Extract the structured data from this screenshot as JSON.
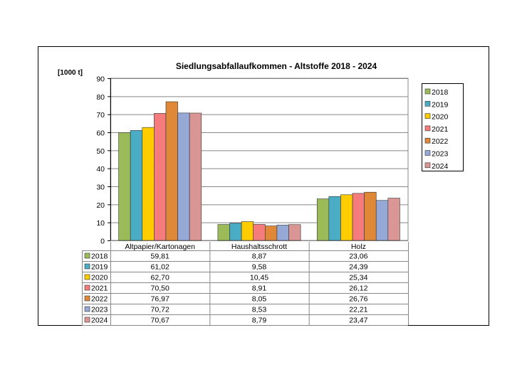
{
  "chart_data": {
    "type": "bar",
    "title": "Siedlungsabfallaufkommen - Altstoffe 2018 - 2024",
    "ylabel": "[1000 t]",
    "ylim": [
      0,
      90
    ],
    "yticks": [
      "0",
      "10",
      "20",
      "30",
      "40",
      "50",
      "60",
      "70",
      "80",
      "90"
    ],
    "grid": true,
    "legend_position": "right",
    "categories": [
      "Altpapier/Kartonagen",
      "Haushaltsschrott",
      "Holz"
    ],
    "series": [
      {
        "name": "2018",
        "color": "#9BBB59",
        "values": [
          59.81,
          8.87,
          23.06
        ],
        "labels": [
          "59,81",
          "8,87",
          "23,06"
        ]
      },
      {
        "name": "2019",
        "color": "#4BACC6",
        "values": [
          61.02,
          9.58,
          24.39
        ],
        "labels": [
          "61,02",
          "9,58",
          "24,39"
        ]
      },
      {
        "name": "2020",
        "color": "#FFCC00",
        "values": [
          62.7,
          10.45,
          25.34
        ],
        "labels": [
          "62,70",
          "10,45",
          "25,34"
        ]
      },
      {
        "name": "2021",
        "color": "#F47C7C",
        "values": [
          70.5,
          8.91,
          26.12
        ],
        "labels": [
          "70,50",
          "8,91",
          "26,12"
        ]
      },
      {
        "name": "2022",
        "color": "#DE8838",
        "values": [
          76.97,
          8.05,
          26.76
        ],
        "labels": [
          "76,97",
          "8,05",
          "26,76"
        ]
      },
      {
        "name": "2023",
        "color": "#95A8D6",
        "values": [
          70.72,
          8.53,
          22.21
        ],
        "labels": [
          "70,72",
          "8,53",
          "22,21"
        ]
      },
      {
        "name": "2024",
        "color": "#D99694",
        "values": [
          70.67,
          8.79,
          23.47
        ],
        "labels": [
          "70,67",
          "8,79",
          "23,47"
        ]
      }
    ]
  }
}
